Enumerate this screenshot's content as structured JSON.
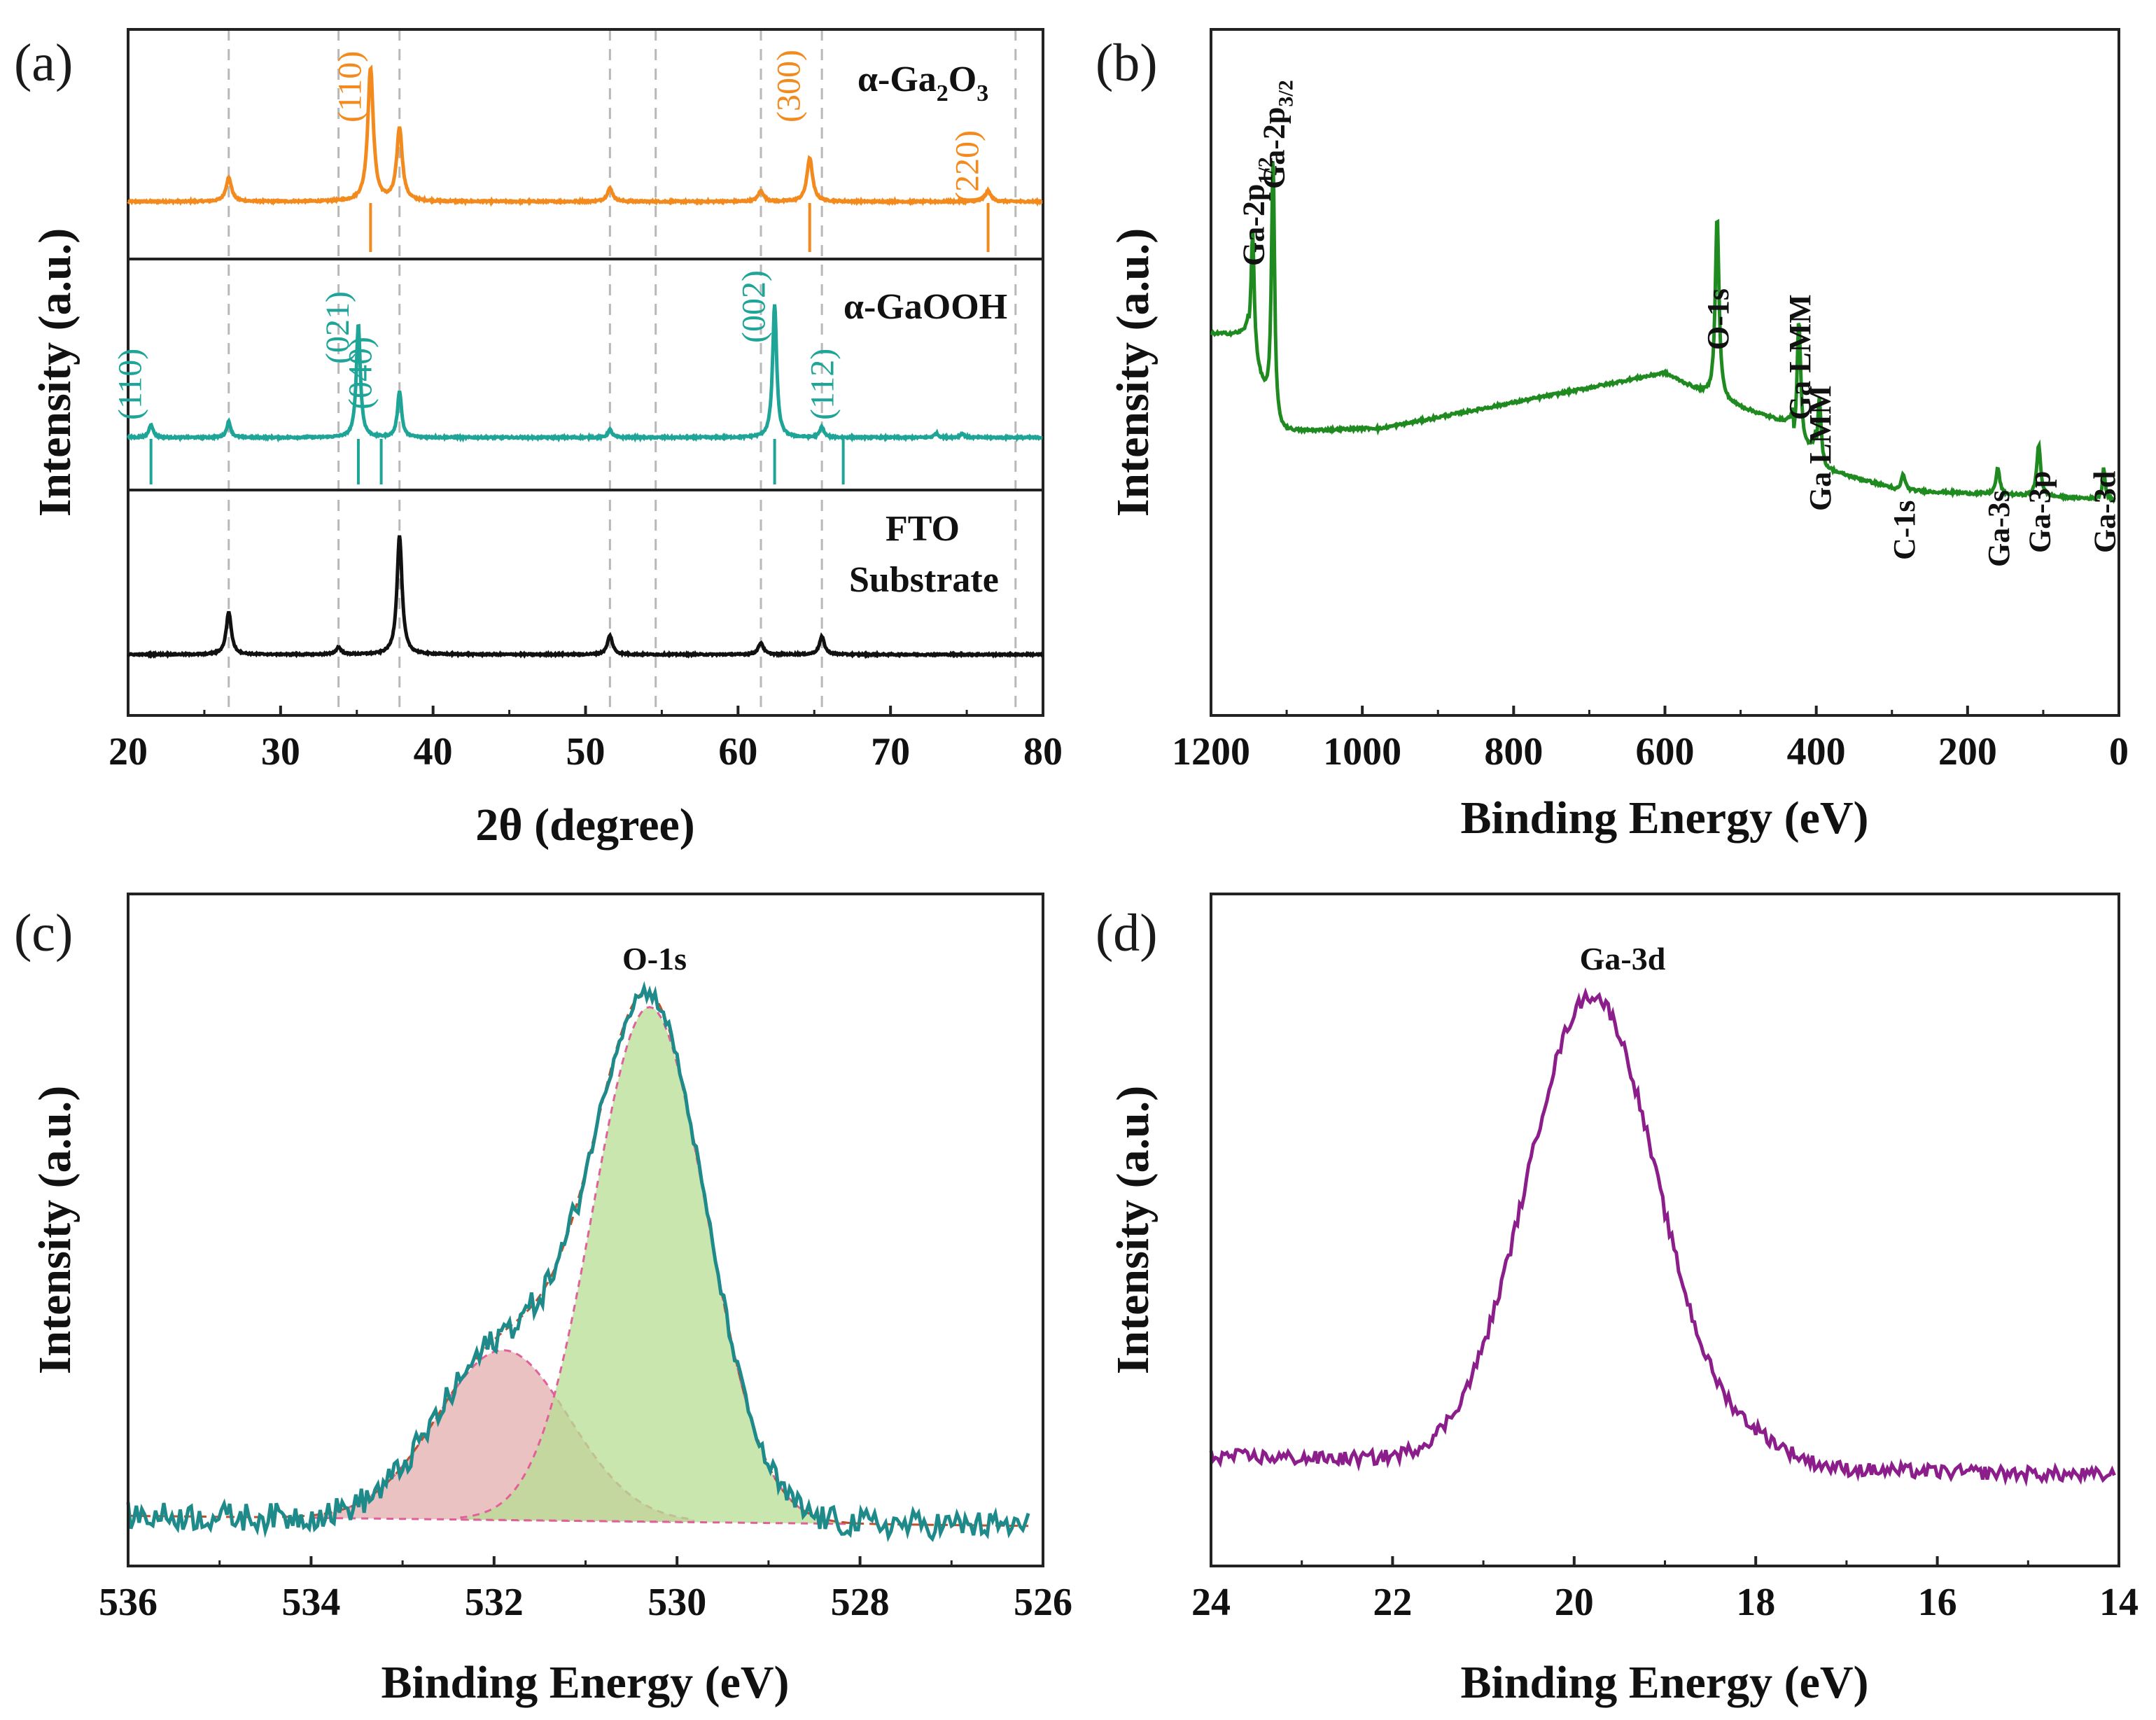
{
  "figure": {
    "panels": [
      "(a)",
      "(b)",
      "(c)",
      "(d)"
    ]
  },
  "chart_data": [
    {
      "id": "a",
      "type": "line",
      "title": "",
      "xlabel": "2θ (degree)",
      "ylabel": "Intensity (a.u.)",
      "xlim": [
        20,
        80
      ],
      "xticks": [
        "20",
        "30",
        "40",
        "50",
        "60",
        "70",
        "80"
      ],
      "colors": {
        "ga2o3": "#F28A1E",
        "gaooh": "#1FA597",
        "fto": "#111111"
      },
      "series": [
        {
          "name": "α-Ga2O3",
          "label_main": "α-Ga",
          "label_sub1": "2",
          "label_o": "O",
          "label_sub2": "3",
          "peaks": [
            [
              26.6,
              0.18
            ],
            [
              35.9,
              1.0
            ],
            [
              37.8,
              0.55
            ],
            [
              51.6,
              0.1
            ],
            [
              61.5,
              0.08
            ],
            [
              64.7,
              0.33
            ],
            [
              76.4,
              0.08
            ]
          ],
          "ref_lines": [
            35.9,
            64.7,
            76.4
          ],
          "hkl": [
            {
              "x": 35.9,
              "label": "(110)"
            },
            {
              "x": 64.7,
              "label": "(300)"
            },
            {
              "x": 76.4,
              "label": "(220)"
            }
          ]
        },
        {
          "name": "α-GaOOH",
          "label_main": "α-GaOOH",
          "peaks": [
            [
              21.5,
              0.1
            ],
            [
              26.6,
              0.12
            ],
            [
              35.1,
              0.85
            ],
            [
              37.8,
              0.35
            ],
            [
              51.6,
              0.06
            ],
            [
              62.4,
              1.0
            ],
            [
              65.5,
              0.08
            ],
            [
              73.0,
              0.03
            ],
            [
              74.7,
              0.03
            ]
          ],
          "ref_lines": [
            21.5,
            35.1,
            36.6,
            62.4,
            66.9
          ],
          "hkl": [
            {
              "x": 21.5,
              "label": "(110)"
            },
            {
              "x": 35.1,
              "label": "(021)"
            },
            {
              "x": 36.6,
              "label": "(040)"
            },
            {
              "x": 62.4,
              "label": "(002)"
            },
            {
              "x": 66.9,
              "label": "(112)"
            }
          ]
        },
        {
          "name": "FTO Substrate",
          "label_line1": "FTO",
          "label_line2": "Substrate",
          "peaks": [
            [
              26.6,
              0.36
            ],
            [
              33.8,
              0.06
            ],
            [
              37.8,
              1.0
            ],
            [
              51.6,
              0.16
            ],
            [
              61.5,
              0.1
            ],
            [
              65.5,
              0.15
            ]
          ]
        }
      ],
      "dashed_guides": [
        26.6,
        33.8,
        37.8,
        51.6,
        54.6,
        61.5,
        65.5,
        78.2
      ]
    },
    {
      "id": "b",
      "type": "line",
      "title": "",
      "xlabel": "Binding Energy (eV)",
      "ylabel": "Intensity (a.u.)",
      "xlim": [
        1200,
        0
      ],
      "xticks": [
        "1200",
        "1000",
        "800",
        "600",
        "400",
        "200",
        "0"
      ],
      "color": "#1F8A1F",
      "annotations": [
        {
          "x": 1145,
          "label": "Ga-2p",
          "sub": "1/2"
        },
        {
          "x": 1118,
          "label": "Ga-2p",
          "sub": "3/2"
        },
        {
          "x": 531,
          "label": "O-1s"
        },
        {
          "x": 423,
          "label": "Ga LMM"
        },
        {
          "x": 396,
          "label": "Ga LMM"
        },
        {
          "x": 285,
          "label": "C-1s"
        },
        {
          "x": 160,
          "label": "Ga-3s"
        },
        {
          "x": 106,
          "label": "Ga-3p"
        },
        {
          "x": 20,
          "label": "Ga-3d"
        }
      ]
    },
    {
      "id": "c",
      "type": "line",
      "title": "O-1s",
      "xlabel": "Binding Energy (eV)",
      "ylabel": "Intensity (a.u.)",
      "xlim": [
        536,
        526
      ],
      "xticks": [
        "536",
        "534",
        "532",
        "530",
        "528",
        "526"
      ],
      "series": [
        {
          "name": "raw",
          "color": "#1E8A8A"
        },
        {
          "name": "fit-lattice-O",
          "center": 530.3,
          "fill": "#B6DE92"
        },
        {
          "name": "fit-OH",
          "center": 531.9,
          "fill": "#E8B7B7"
        }
      ]
    },
    {
      "id": "d",
      "type": "line",
      "title": "Ga-3d",
      "xlabel": "Binding Energy (eV)",
      "ylabel": "Intensity (a.u.)",
      "xlim": [
        24,
        14
      ],
      "xticks": [
        "24",
        "22",
        "20",
        "18",
        "16",
        "14"
      ],
      "series": [
        {
          "name": "raw",
          "color": "#8B1E8B",
          "center": 19.8,
          "fill": "#D2B8E0"
        }
      ]
    }
  ]
}
